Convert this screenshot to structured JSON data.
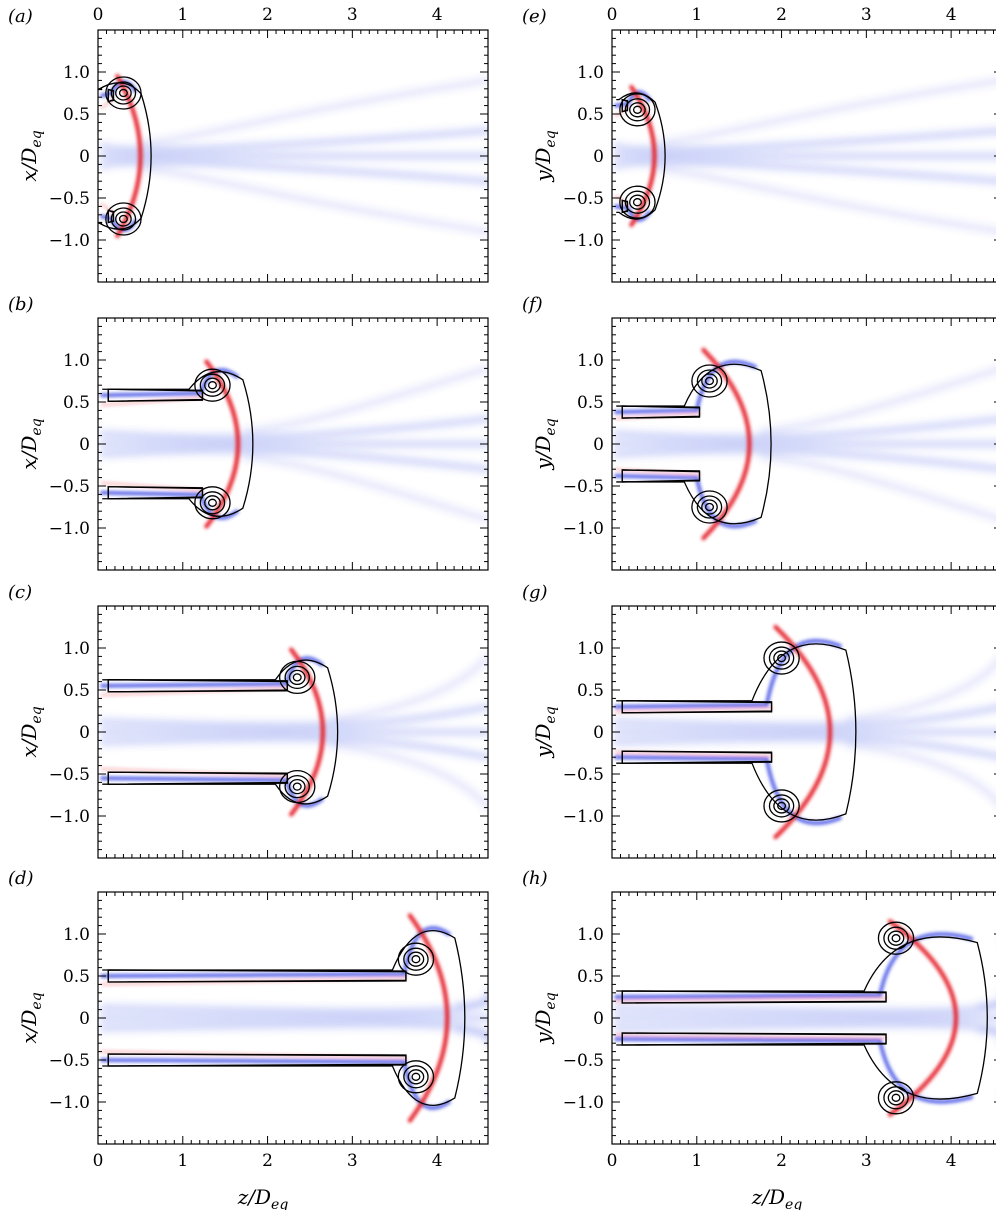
{
  "chart_data": {
    "type": "contour",
    "grid": false,
    "xlim": [
      0,
      4.6
    ],
    "ylim": [
      -1.5,
      1.5
    ],
    "x_ticks": [
      "0",
      "1",
      "2",
      "3",
      "4"
    ],
    "y_ticks": [
      "1.0",
      "0.5",
      "0",
      "-0.5",
      "-1.0"
    ],
    "colors": {
      "positive": "#e8202a",
      "negative": "#2b3ee8",
      "contour": "#000000"
    },
    "xlabel": "z/Deq",
    "panels": [
      {
        "label": "(a)",
        "ylabel": "x/Deq",
        "front_z": 0.65,
        "vortex_z": 0.3,
        "vortex_r": 0.75,
        "outer_r": 0.95,
        "tail_r": 0.72
      },
      {
        "label": "(b)",
        "ylabel": "x/Deq",
        "front_z": 1.85,
        "vortex_z": 1.35,
        "vortex_r": 0.7,
        "outer_r": 0.98,
        "tail_r": 0.58
      },
      {
        "label": "(c)",
        "ylabel": "x/Deq",
        "front_z": 2.85,
        "vortex_z": 2.35,
        "vortex_r": 0.65,
        "outer_r": 0.98,
        "tail_r": 0.55
      },
      {
        "label": "(d)",
        "ylabel": "x/Deq",
        "front_z": 4.35,
        "vortex_z": 3.75,
        "vortex_r": 0.7,
        "outer_r": 1.22,
        "tail_r": 0.5
      },
      {
        "label": "(e)",
        "ylabel": "y/Deq",
        "front_z": 0.65,
        "vortex_z": 0.3,
        "vortex_r": 0.55,
        "outer_r": 0.82,
        "tail_r": 0.6
      },
      {
        "label": "(f)",
        "ylabel": "y/Deq",
        "front_z": 1.9,
        "vortex_z": 1.15,
        "vortex_r": 0.75,
        "outer_r": 1.12,
        "tail_r": 0.38
      },
      {
        "label": "(g)",
        "ylabel": "y/Deq",
        "front_z": 2.9,
        "vortex_z": 2.0,
        "vortex_r": 0.88,
        "outer_r": 1.25,
        "tail_r": 0.3
      },
      {
        "label": "(h)",
        "ylabel": "y/Deq",
        "front_z": 4.45,
        "vortex_z": 3.35,
        "vortex_r": 0.95,
        "outer_r": 1.15,
        "tail_r": 0.25
      }
    ]
  }
}
